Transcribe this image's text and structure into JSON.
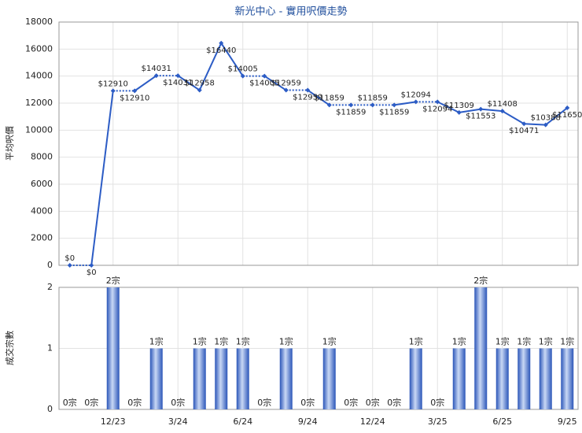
{
  "chart_data": [
    {
      "type": "line",
      "title": "新光中心 - 實用呎價走勢",
      "y_label": "平均呎價",
      "color": "#2c5cc5",
      "categories": [
        null,
        null,
        "12/23",
        null,
        null,
        "3/24",
        null,
        null,
        "6/24",
        null,
        null,
        "9/24",
        null,
        null,
        "12/24",
        null,
        null,
        "3/25",
        null,
        null,
        "6/25",
        null,
        null,
        "9/25"
      ],
      "values": [
        0,
        0,
        12910,
        12910,
        14031,
        14031,
        12958,
        16440,
        14005,
        14005,
        12959,
        12959,
        11859,
        11859,
        11859,
        11859,
        12094,
        12094,
        11309,
        11553,
        11408,
        10471,
        10388,
        11650
      ],
      "value_labels": [
        "$0",
        "$0",
        "$12910",
        "$12910",
        "$14031",
        "$14031",
        "$12958",
        "$16440",
        "$14005",
        "$14005",
        "$12959",
        "$12959",
        "$11859",
        "$11859",
        "$11859",
        "$11859",
        "$12094",
        "$12094",
        "$11309",
        "$11553",
        "$11408",
        "$10471",
        "$10388",
        "$11650"
      ],
      "ylim": [
        0,
        18000
      ],
      "yticks": [
        0,
        2000,
        4000,
        6000,
        8000,
        10000,
        12000,
        14000,
        16000,
        18000
      ],
      "grid": true
    },
    {
      "type": "bar",
      "y_label": "成交宗數",
      "color": "#3a66c8",
      "categories": [
        null,
        null,
        "12/23",
        null,
        null,
        "3/24",
        null,
        null,
        "6/24",
        null,
        null,
        "9/24",
        null,
        null,
        "12/24",
        null,
        null,
        "3/25",
        null,
        null,
        "6/25",
        null,
        null,
        "9/25"
      ],
      "values": [
        0,
        0,
        2,
        0,
        1,
        0,
        1,
        1,
        1,
        0,
        1,
        0,
        1,
        0,
        0,
        0,
        1,
        0,
        1,
        2,
        1,
        1,
        1,
        1
      ],
      "value_labels": [
        "0宗",
        "0宗",
        "2宗",
        "0宗",
        "1宗",
        "0宗",
        "1宗",
        "1宗",
        "1宗",
        "0宗",
        "1宗",
        "0宗",
        "1宗",
        "0宗",
        "0宗",
        "0宗",
        "1宗",
        "0宗",
        "1宗",
        "2宗",
        "1宗",
        "1宗",
        "1宗",
        "1宗"
      ],
      "ylim": [
        0,
        2
      ],
      "yticks": [
        0,
        1,
        2
      ],
      "grid": true
    }
  ]
}
